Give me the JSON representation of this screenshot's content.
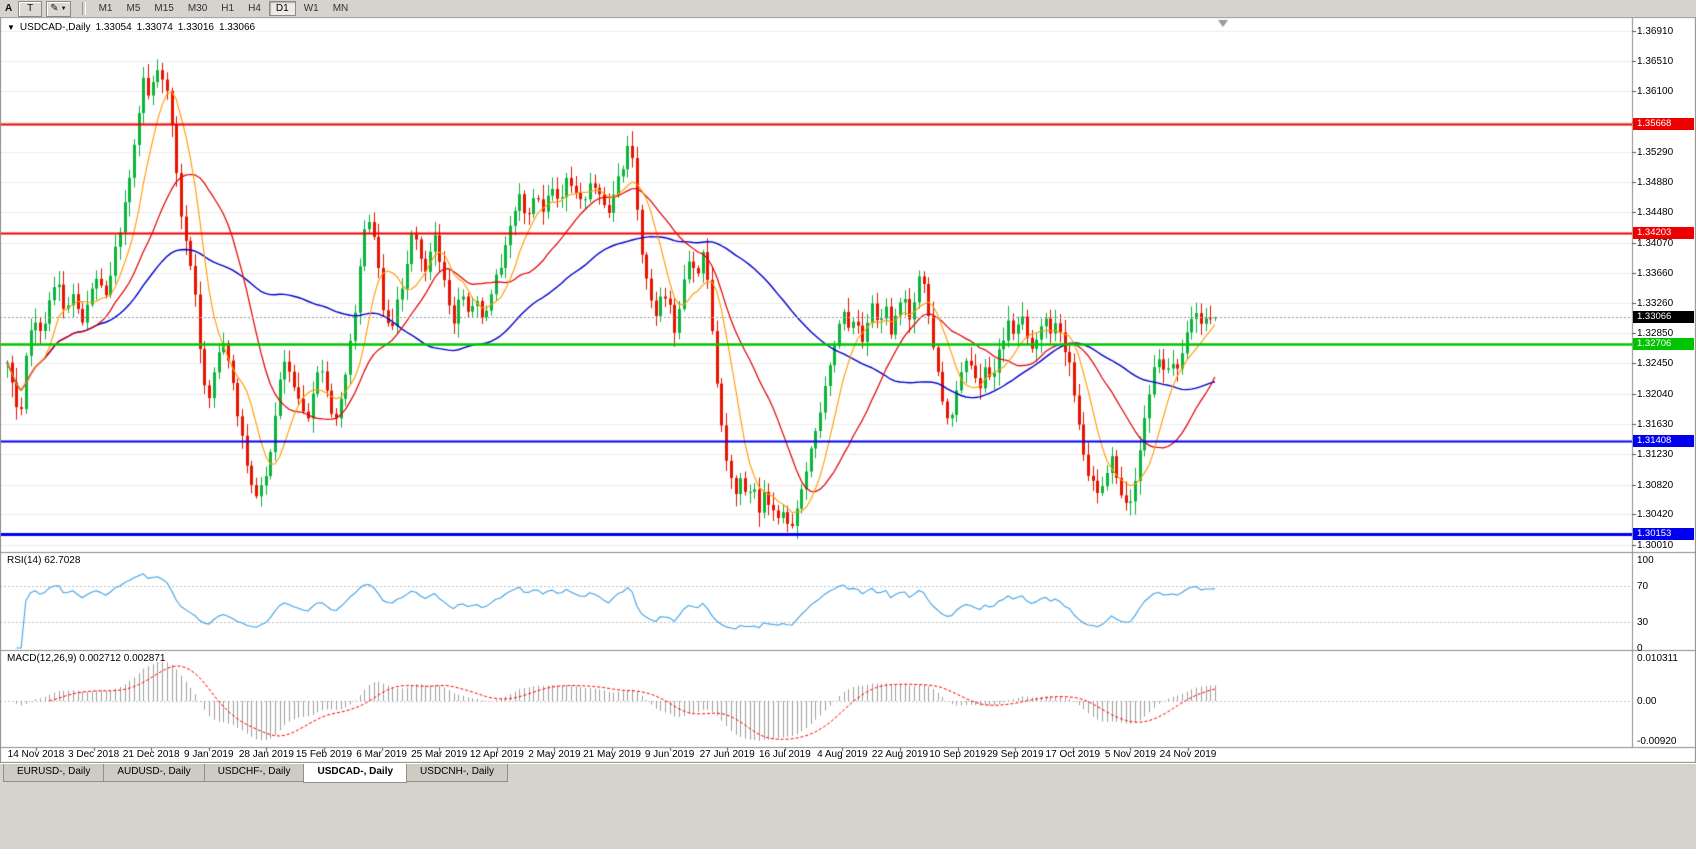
{
  "toolbar": {
    "left_label": "A",
    "text_tool_label": "T",
    "timeframes": [
      "M1",
      "M5",
      "M15",
      "M30",
      "H1",
      "H4",
      "D1",
      "W1",
      "MN"
    ],
    "active_timeframe": "D1"
  },
  "ohlc_header": {
    "symbol_period": "USDCAD-,Daily",
    "open": "1.33054",
    "high": "1.33074",
    "low": "1.33016",
    "close": "1.33066"
  },
  "price_axis": [
    "1.36910",
    "1.36510",
    "1.36100",
    "1.35690",
    "1.35290",
    "1.34880",
    "1.34480",
    "1.34070",
    "1.33660",
    "1.33260",
    "1.32850",
    "1.32450",
    "1.32040",
    "1.31630",
    "1.31230",
    "1.30820",
    "1.30420",
    "1.30010"
  ],
  "levels": [
    {
      "label": "1.35668",
      "price": 1.35668,
      "color": "#ee0000",
      "line_width": 2,
      "current": false
    },
    {
      "label": "1.34203",
      "price": 1.34203,
      "color": "#ee0000",
      "line_width": 2,
      "current": false
    },
    {
      "label": "1.33066",
      "price": 1.33066,
      "color": "#000000",
      "line_width": 1,
      "current": true
    },
    {
      "label": "1.32706",
      "price": 1.32706,
      "color": "#00c400",
      "line_width": 2.5,
      "current": false
    },
    {
      "label": "1.31408",
      "price": 1.31408,
      "color": "#0000ee",
      "line_width": 2,
      "current": false
    },
    {
      "label": "1.30153",
      "price": 1.30153,
      "color": "#0000ee",
      "line_width": 3,
      "current": false
    }
  ],
  "date_axis": [
    "14 Nov 2018",
    "3 Dec 2018",
    "21 Dec 2018",
    "9 Jan 2019",
    "28 Jan 2019",
    "15 Feb 2019",
    "6 Mar 2019",
    "25 Mar 2019",
    "12 Apr 2019",
    "2 May 2019",
    "21 May 2019",
    "9 Jun 2019",
    "27 Jun 2019",
    "16 Jul 2019",
    "4 Aug 2019",
    "22 Aug 2019",
    "10 Sep 2019",
    "29 Sep 2019",
    "17 Oct 2019",
    "5 Nov 2019",
    "24 Nov 2019"
  ],
  "rsi_panel": {
    "label": "RSI(14) 62.7028",
    "axis_labels": [
      "100",
      "70",
      "30",
      "0"
    ],
    "axis_values": [
      100,
      70,
      30,
      0
    ],
    "level_lines": [
      70,
      30
    ],
    "line_color": "#42a3e8"
  },
  "macd_panel": {
    "label": "MACD(12,26,9) 0.002712 0.002871",
    "axis_labels": [
      "0.010311",
      "0.00",
      "-0.00920"
    ],
    "axis_values": [
      0.010311,
      0,
      -0.0092
    ],
    "hist_color": "#a0a0a0",
    "signal_color": "#ff0000"
  },
  "tabs": [
    {
      "label": "EURUSD-, Daily",
      "active": false
    },
    {
      "label": "AUDUSD-, Daily",
      "active": false
    },
    {
      "label": "USDCHF-, Daily",
      "active": false
    },
    {
      "label": "USDCAD-, Daily",
      "active": true
    },
    {
      "label": "USDCNH-, Daily",
      "active": false
    }
  ],
  "chart_data": {
    "type": "candlestick",
    "symbol": "USDCAD-",
    "timeframe": "Daily",
    "last_ohlc": {
      "open": 1.33054,
      "high": 1.33074,
      "low": 1.33016,
      "close": 1.33066
    },
    "price_range": {
      "top": 1.3691,
      "bottom": 1.3001
    },
    "rsi_last": 62.7028,
    "macd_last": 0.002712,
    "macd_signal_last": 0.002871,
    "horizontal_levels": [
      1.35668,
      1.34203,
      1.32706,
      1.31408,
      1.30153
    ],
    "colors": {
      "bull": "#0cb43c",
      "bear": "#e81400",
      "ma_fast": "#ff9b00",
      "ma_mid": "#e00000",
      "ma_slow": "#0000cc"
    },
    "price_path": [
      [
        7,
        1.324
      ],
      [
        14,
        1.3205
      ],
      [
        20,
        1.317
      ],
      [
        26,
        1.3262
      ],
      [
        34,
        1.33
      ],
      [
        42,
        1.3282
      ],
      [
        50,
        1.333
      ],
      [
        57,
        1.3368
      ],
      [
        64,
        1.331
      ],
      [
        74,
        1.334
      ],
      [
        82,
        1.3302
      ],
      [
        90,
        1.3345
      ],
      [
        98,
        1.3358
      ],
      [
        106,
        1.3338
      ],
      [
        114,
        1.3392
      ],
      [
        122,
        1.3438
      ],
      [
        130,
        1.3495
      ],
      [
        138,
        1.3575
      ],
      [
        144,
        1.364
      ],
      [
        149,
        1.3596
      ],
      [
        155,
        1.3645
      ],
      [
        161,
        1.3628
      ],
      [
        167,
        1.3606
      ],
      [
        173,
        1.3548
      ],
      [
        179,
        1.3462
      ],
      [
        187,
        1.3402
      ],
      [
        195,
        1.3332
      ],
      [
        202,
        1.3232
      ],
      [
        209,
        1.3196
      ],
      [
        216,
        1.3246
      ],
      [
        223,
        1.3272
      ],
      [
        230,
        1.3236
      ],
      [
        237,
        1.318
      ],
      [
        244,
        1.313
      ],
      [
        251,
        1.3086
      ],
      [
        258,
        1.3066
      ],
      [
        265,
        1.3096
      ],
      [
        272,
        1.3142
      ],
      [
        279,
        1.3222
      ],
      [
        286,
        1.3256
      ],
      [
        293,
        1.3216
      ],
      [
        300,
        1.3186
      ],
      [
        307,
        1.3166
      ],
      [
        314,
        1.3212
      ],
      [
        321,
        1.3246
      ],
      [
        328,
        1.3196
      ],
      [
        335,
        1.3162
      ],
      [
        342,
        1.3202
      ],
      [
        349,
        1.3262
      ],
      [
        356,
        1.3324
      ],
      [
        363,
        1.3422
      ],
      [
        370,
        1.344
      ],
      [
        377,
        1.3382
      ],
      [
        384,
        1.3312
      ],
      [
        391,
        1.3292
      ],
      [
        398,
        1.3332
      ],
      [
        405,
        1.3362
      ],
      [
        412,
        1.3422
      ],
      [
        419,
        1.3392
      ],
      [
        426,
        1.3362
      ],
      [
        433,
        1.342
      ],
      [
        440,
        1.3382
      ],
      [
        447,
        1.3332
      ],
      [
        454,
        1.3302
      ],
      [
        461,
        1.3342
      ],
      [
        468,
        1.3312
      ],
      [
        475,
        1.3332
      ],
      [
        482,
        1.3302
      ],
      [
        489,
        1.3332
      ],
      [
        496,
        1.3362
      ],
      [
        503,
        1.3382
      ],
      [
        511,
        1.344
      ],
      [
        519,
        1.3468
      ],
      [
        527,
        1.3442
      ],
      [
        535,
        1.347
      ],
      [
        543,
        1.3452
      ],
      [
        551,
        1.3482
      ],
      [
        559,
        1.3462
      ],
      [
        567,
        1.3492
      ],
      [
        575,
        1.348
      ],
      [
        583,
        1.3462
      ],
      [
        591,
        1.3492
      ],
      [
        599,
        1.3472
      ],
      [
        607,
        1.3442
      ],
      [
        615,
        1.3482
      ],
      [
        623,
        1.3512
      ],
      [
        629,
        1.3552
      ],
      [
        635,
        1.3482
      ],
      [
        641,
        1.3392
      ],
      [
        648,
        1.3342
      ],
      [
        655,
        1.3302
      ],
      [
        662,
        1.3342
      ],
      [
        669,
        1.3322
      ],
      [
        676,
        1.3282
      ],
      [
        683,
        1.3352
      ],
      [
        690,
        1.3382
      ],
      [
        697,
        1.3362
      ],
      [
        704,
        1.3398
      ],
      [
        709,
        1.3342
      ],
      [
        714,
        1.3262
      ],
      [
        719,
        1.3182
      ],
      [
        724,
        1.3132
      ],
      [
        729,
        1.3102
      ],
      [
        735,
        1.3072
      ],
      [
        741,
        1.3092
      ],
      [
        747,
        1.3062
      ],
      [
        753,
        1.3082
      ],
      [
        759,
        1.3046
      ],
      [
        765,
        1.3072
      ],
      [
        771,
        1.3052
      ],
      [
        777,
        1.3032
      ],
      [
        783,
        1.3052
      ],
      [
        789,
        1.3022
      ],
      [
        795,
        1.3042
      ],
      [
        801,
        1.3072
      ],
      [
        807,
        1.3112
      ],
      [
        813,
        1.3142
      ],
      [
        819,
        1.3172
      ],
      [
        825,
        1.3212
      ],
      [
        831,
        1.3252
      ],
      [
        837,
        1.3292
      ],
      [
        843,
        1.3322
      ],
      [
        849,
        1.3282
      ],
      [
        855,
        1.3312
      ],
      [
        861,
        1.3272
      ],
      [
        867,
        1.3302
      ],
      [
        873,
        1.3332
      ],
      [
        879,
        1.3292
      ],
      [
        885,
        1.3322
      ],
      [
        891,
        1.3282
      ],
      [
        897,
        1.3312
      ],
      [
        903,
        1.3342
      ],
      [
        909,
        1.3302
      ],
      [
        915,
        1.3332
      ],
      [
        921,
        1.3372
      ],
      [
        926,
        1.3332
      ],
      [
        931,
        1.3282
      ],
      [
        937,
        1.3242
      ],
      [
        943,
        1.3192
      ],
      [
        949,
        1.3162
      ],
      [
        955,
        1.3202
      ],
      [
        961,
        1.3232
      ],
      [
        967,
        1.3252
      ],
      [
        973,
        1.3232
      ],
      [
        979,
        1.3212
      ],
      [
        985,
        1.3242
      ],
      [
        991,
        1.3222
      ],
      [
        997,
        1.3252
      ],
      [
        1003,
        1.3272
      ],
      [
        1009,
        1.3302
      ],
      [
        1015,
        1.3282
      ],
      [
        1021,
        1.3312
      ],
      [
        1027,
        1.3282
      ],
      [
        1033,
        1.3252
      ],
      [
        1039,
        1.3292
      ],
      [
        1045,
        1.3312
      ],
      [
        1051,
        1.3282
      ],
      [
        1057,
        1.3302
      ],
      [
        1063,
        1.3272
      ],
      [
        1069,
        1.3242
      ],
      [
        1075,
        1.3192
      ],
      [
        1081,
        1.3142
      ],
      [
        1087,
        1.3102
      ],
      [
        1093,
        1.3082
      ],
      [
        1099,
        1.3062
      ],
      [
        1105,
        1.3092
      ],
      [
        1111,
        1.3122
      ],
      [
        1117,
        1.3092
      ],
      [
        1123,
        1.3062
      ],
      [
        1129,
        1.3046
      ],
      [
        1135,
        1.3082
      ],
      [
        1141,
        1.3142
      ],
      [
        1147,
        1.3192
      ],
      [
        1153,
        1.3232
      ],
      [
        1159,
        1.3252
      ],
      [
        1165,
        1.3222
      ],
      [
        1171,
        1.3252
      ],
      [
        1177,
        1.3232
      ],
      [
        1183,
        1.3262
      ],
      [
        1189,
        1.3292
      ],
      [
        1195,
        1.3312
      ],
      [
        1201,
        1.3292
      ],
      [
        1207,
        1.331
      ],
      [
        1215,
        1.33066
      ]
    ]
  }
}
